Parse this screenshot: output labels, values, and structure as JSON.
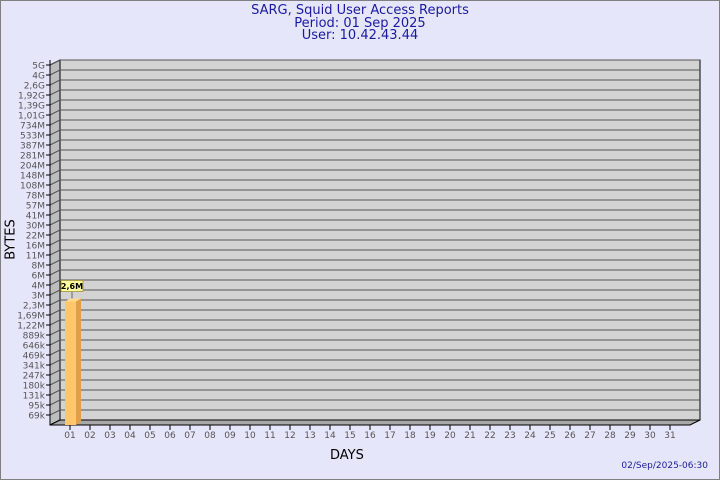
{
  "header": {
    "title": "SARG, Squid User Access Reports",
    "period": "Period: 01 Sep 2025",
    "user": "User: 10.42.43.44"
  },
  "footer": {
    "timestamp": "02/Sep/2025-06:30"
  },
  "colors": {
    "background": "#e6e6fa",
    "wall": "#d3d3d3",
    "side_wall": "#bdbdbd",
    "bar_front": "#ffc66e",
    "bar_side": "#e0a04a",
    "label_bg": "#ffff9e",
    "title": "#1a1aa0"
  },
  "chart_data": {
    "type": "bar",
    "style": "3d",
    "xlabel": "DAYS",
    "ylabel": "BYTES",
    "y_scale": "log",
    "ylim": [
      69000,
      5000000000
    ],
    "grid": true,
    "y_ticks": [
      "5G",
      "4G",
      "2,6G",
      "1,92G",
      "1,39G",
      "1,01G",
      "734M",
      "533M",
      "387M",
      "281M",
      "204M",
      "148M",
      "108M",
      "78M",
      "57M",
      "41M",
      "30M",
      "22M",
      "16M",
      "11M",
      "8M",
      "6M",
      "4M",
      "3M",
      "2,3M",
      "1,69M",
      "1,22M",
      "889k",
      "646k",
      "469k",
      "341k",
      "247k",
      "180k",
      "131k",
      "95k",
      "69k"
    ],
    "categories": [
      "01",
      "02",
      "03",
      "04",
      "05",
      "06",
      "07",
      "08",
      "09",
      "10",
      "11",
      "12",
      "13",
      "14",
      "15",
      "16",
      "17",
      "18",
      "19",
      "20",
      "21",
      "22",
      "23",
      "24",
      "25",
      "26",
      "27",
      "28",
      "29",
      "30",
      "31"
    ],
    "values": [
      2600000,
      0,
      0,
      0,
      0,
      0,
      0,
      0,
      0,
      0,
      0,
      0,
      0,
      0,
      0,
      0,
      0,
      0,
      0,
      0,
      0,
      0,
      0,
      0,
      0,
      0,
      0,
      0,
      0,
      0,
      0
    ],
    "data_labels": [
      "2,6M",
      "",
      "",
      "",
      "",
      "",
      "",
      "",
      "",
      "",
      "",
      "",
      "",
      "",
      "",
      "",
      "",
      "",
      "",
      "",
      "",
      "",
      "",
      "",
      "",
      "",
      "",
      "",
      "",
      "",
      ""
    ]
  }
}
